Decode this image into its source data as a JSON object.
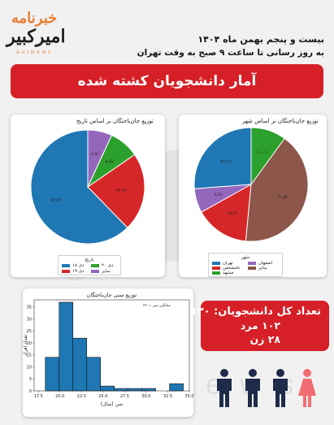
{
  "brand": {
    "top": "خبرنامه",
    "main": "امیرکبیر",
    "sub": "AutNews",
    "primary_color": "#d61f26",
    "accent_color": "#e77d33"
  },
  "watermark": {
    "text": "AutNews"
  },
  "header": {
    "date_line": "بیست و پنجم بهمن ماه ۱۴۰۴",
    "update_line": "به روز رسانی تا ساعت ۹ صبح به وقت تهران"
  },
  "title": "آمار دانشجویان کشته شده",
  "pie_date": {
    "title": "توزیع جان‌باختگان بر اساس تاریخ",
    "legend_title": "تاریخ",
    "legend": [
      "۱۸ دی",
      "۱۹ دی",
      "۲۰ دی",
      "سایر"
    ],
    "colors": [
      "#1f77b4",
      "#d62728",
      "#2ca02c",
      "#9467bd"
    ],
    "labels": [
      "۶۲٫۳٪",
      "۲۲٫۳٪",
      "۸٫۵٪",
      "۶٫۹٪"
    ]
  },
  "pie_city": {
    "title": "توزیع جان‌باختگان بر اساس شهر",
    "legend_title": "شهر",
    "legend": [
      "تهران",
      "اصفهان",
      "نامشخص",
      "سایر",
      "مشهد"
    ],
    "colors": [
      "#1f77b4",
      "#9467bd",
      "#d62728",
      "#8c564b",
      "#2ca02c"
    ],
    "labels": [
      "۲۶٫۲٪",
      "۴۱٫۵٪",
      "۶٫۹٪",
      "۱۰٫۰٪",
      "۱۵٫۴٪"
    ]
  },
  "histogram": {
    "title": "توزیع سنی جان‌باختگان",
    "xlabel": "سن (سال)",
    "ylabel": "تعداد افراد",
    "annotation": "میانگین سن = ۲۲"
  },
  "stats": {
    "total": "تعداد کل دانشجویان: ۱۳۰",
    "men": "۱۰۲ مرد",
    "women": "۲۸ زن"
  },
  "people": {
    "male_color": "#1e2b4a",
    "female_color": "#f26d73"
  },
  "chart_data": [
    {
      "type": "pie",
      "title": "توزیع جان‌باختگان بر اساس تاریخ",
      "legend_title": "تاریخ",
      "categories": [
        "۱۸ دی",
        "۱۹ دی",
        "۲۰ دی",
        "سایر"
      ],
      "values": [
        62.3,
        22.3,
        8.5,
        6.9
      ],
      "legend_placement": "bottom"
    },
    {
      "type": "pie",
      "title": "توزیع جان‌باختگان بر اساس شهر",
      "legend_title": "شهر",
      "categories": [
        "تهران",
        "اصفهان",
        "نامشخص",
        "سایر",
        "مشهد"
      ],
      "values": [
        26.2,
        6.9,
        15.4,
        41.5,
        10.0
      ],
      "legend_placement": "bottom"
    },
    {
      "type": "bar",
      "title": "توزیع سنی جان‌باختگان",
      "xlabel": "سن (سال)",
      "ylabel": "تعداد افراد",
      "bin_width": 1.6,
      "bin_starts": [
        18.3,
        19.9,
        21.5,
        23.1,
        24.7,
        26.3,
        27.9,
        29.5,
        31.1,
        32.7
      ],
      "values": [
        14,
        37,
        22,
        14,
        2,
        1,
        1,
        1,
        0,
        3
      ],
      "xticks": [
        "17.5",
        "20.0",
        "22.5",
        "25.0",
        "27.5",
        "30.0",
        "32.5",
        "35.0"
      ],
      "xtick_values": [
        17.5,
        20.0,
        22.5,
        25.0,
        27.5,
        30.0,
        32.5,
        35.0
      ],
      "yticks": [
        "0",
        "5",
        "10",
        "15",
        "20",
        "25",
        "30",
        "35"
      ],
      "ytick_values": [
        0,
        5,
        10,
        15,
        20,
        25,
        30,
        35
      ],
      "xlim": [
        17.0,
        35.0
      ],
      "ylim": [
        0,
        38
      ],
      "mean_label": "میانگین سن = ۲۲"
    }
  ]
}
